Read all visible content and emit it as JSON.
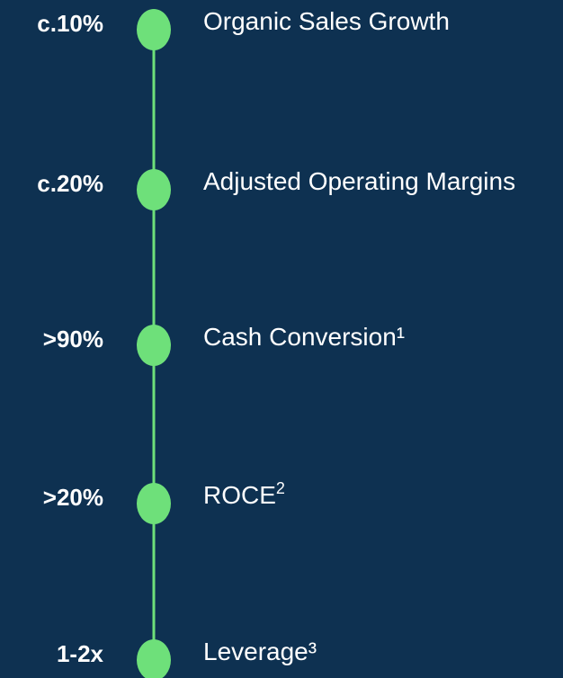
{
  "items": [
    {
      "value": "c.10%",
      "label": "Organic Sales Growth"
    },
    {
      "value": "c.20%",
      "label": "Adjusted Operating Margins"
    },
    {
      "value": ">90%",
      "label": "Cash Conversion¹"
    },
    {
      "value": ">20%",
      "label": "ROCE",
      "note": "2"
    },
    {
      "value": "1-2x",
      "label": "Leverage³"
    }
  ]
}
